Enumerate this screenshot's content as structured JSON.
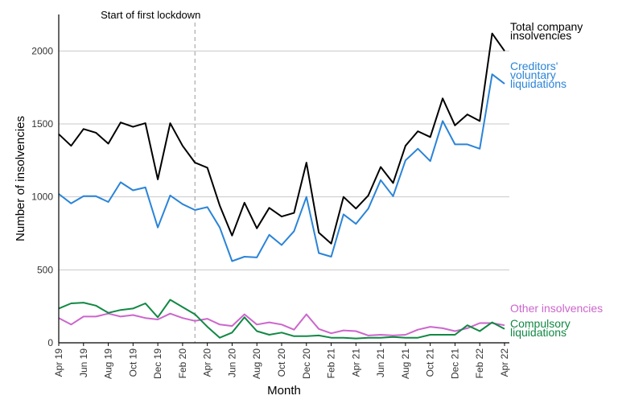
{
  "chart_data": {
    "type": "line",
    "xlabel": "Month",
    "ylabel": "Number of insolvencies",
    "ylim": [
      0,
      2250
    ],
    "yticks": [
      0,
      500,
      1000,
      1500,
      2000
    ],
    "grid": "horizontal",
    "legend": "direct labels at right end of each line",
    "x": [
      "Apr 19",
      "May 19",
      "Jun 19",
      "Jul 19",
      "Aug 19",
      "Sep 19",
      "Oct 19",
      "Nov 19",
      "Dec 19",
      "Jan 20",
      "Feb 20",
      "Mar 20",
      "Apr 20",
      "May 20",
      "Jun 20",
      "Jul 20",
      "Aug 20",
      "Sep 20",
      "Oct 20",
      "Nov 20",
      "Dec 20",
      "Jan 21",
      "Feb 21",
      "Mar 21",
      "Apr 21",
      "May 21",
      "Jun 21",
      "Jul 21",
      "Aug 21",
      "Sep 21",
      "Oct 21",
      "Nov 21",
      "Dec 21",
      "Jan 22",
      "Feb 22",
      "Mar 22",
      "Apr 22"
    ],
    "tick_labels": [
      {
        "index": 0,
        "label": "Apr 19"
      },
      {
        "index": 2,
        "label": "Jun 19"
      },
      {
        "index": 4,
        "label": "Aug 19"
      },
      {
        "index": 6,
        "label": "Oct 19"
      },
      {
        "index": 8,
        "label": "Dec 19"
      },
      {
        "index": 10,
        "label": "Feb 20"
      },
      {
        "index": 12,
        "label": "Apr 20"
      },
      {
        "index": 14,
        "label": "Jun 20"
      },
      {
        "index": 16,
        "label": "Aug 20"
      },
      {
        "index": 18,
        "label": "Oct 20"
      },
      {
        "index": 20,
        "label": "Dec 20"
      },
      {
        "index": 22,
        "label": "Feb 21"
      },
      {
        "index": 24,
        "label": "Apr 21"
      },
      {
        "index": 26,
        "label": "Jun 21"
      },
      {
        "index": 28,
        "label": "Aug 21"
      },
      {
        "index": 30,
        "label": "Oct 21"
      },
      {
        "index": 32,
        "label": "Dec 21"
      },
      {
        "index": 34,
        "label": "Feb 22"
      },
      {
        "index": 36,
        "label": "Apr 22"
      }
    ],
    "annotations": [
      {
        "text": "Start of first lockdown",
        "x_index": 11,
        "style": "dashed vertical line"
      }
    ],
    "series": [
      {
        "name": "Total company insolvencies",
        "label_lines": [
          "Total company",
          "insolvencies"
        ],
        "color": "#000000",
        "values": [
          1430,
          1350,
          1465,
          1440,
          1365,
          1510,
          1480,
          1505,
          1120,
          1505,
          1350,
          1235,
          1200,
          940,
          735,
          960,
          785,
          925,
          865,
          890,
          1235,
          755,
          680,
          1000,
          920,
          1010,
          1205,
          1095,
          1350,
          1450,
          1410,
          1675,
          1490,
          1565,
          1520,
          2120,
          2000
        ]
      },
      {
        "name": "Creditors' voluntary liquidations",
        "label_lines": [
          "Creditors'",
          "voluntary",
          "liquidations"
        ],
        "color": "#2a84d8",
        "values": [
          1020,
          955,
          1005,
          1005,
          965,
          1100,
          1045,
          1065,
          790,
          1010,
          950,
          910,
          930,
          790,
          560,
          590,
          585,
          740,
          670,
          765,
          1000,
          615,
          590,
          880,
          815,
          920,
          1115,
          1005,
          1250,
          1330,
          1245,
          1520,
          1360,
          1360,
          1330,
          1840,
          1775
        ]
      },
      {
        "name": "Other insolvencies",
        "label_lines": [
          "Other insolvencies"
        ],
        "color": "#cc66cc",
        "values": [
          170,
          125,
          180,
          180,
          200,
          180,
          190,
          170,
          160,
          200,
          170,
          150,
          165,
          125,
          115,
          195,
          125,
          140,
          125,
          90,
          195,
          95,
          65,
          85,
          80,
          50,
          55,
          50,
          55,
          90,
          110,
          100,
          80,
          100,
          135,
          135,
          120
        ]
      },
      {
        "name": "Compulsory liquidations",
        "label_lines": [
          "Compulsory",
          "liquidations"
        ],
        "color": "#118844",
        "values": [
          235,
          270,
          275,
          255,
          205,
          225,
          235,
          270,
          175,
          295,
          245,
          195,
          110,
          35,
          70,
          175,
          80,
          55,
          70,
          45,
          45,
          50,
          35,
          35,
          30,
          35,
          35,
          40,
          35,
          35,
          55,
          55,
          55,
          120,
          80,
          140,
          95
        ]
      }
    ]
  }
}
